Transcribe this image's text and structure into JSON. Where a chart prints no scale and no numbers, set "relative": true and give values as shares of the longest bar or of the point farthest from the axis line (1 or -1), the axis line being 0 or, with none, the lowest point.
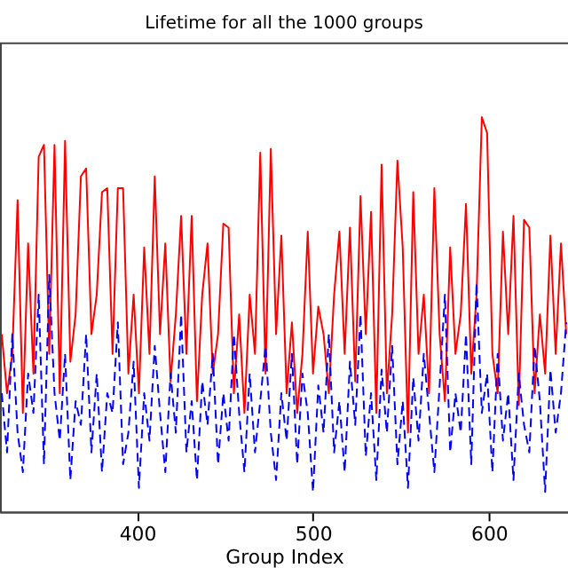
{
  "chart_data": {
    "type": "line",
    "title": "Lifetime for all the 1000 groups",
    "xlabel": "Group Index",
    "relative": true,
    "xlim": [
      322,
      645
    ],
    "xticks": [
      400,
      500,
      600
    ],
    "x": [
      323,
      326,
      329,
      332,
      335,
      338,
      341,
      344,
      347,
      350,
      353,
      356,
      359,
      362,
      365,
      368,
      371,
      374,
      377,
      380,
      383,
      386,
      389,
      392,
      395,
      398,
      401,
      404,
      407,
      410,
      413,
      416,
      419,
      422,
      425,
      428,
      431,
      434,
      437,
      440,
      443,
      446,
      449,
      452,
      455,
      458,
      461,
      464,
      467,
      470,
      473,
      476,
      479,
      482,
      485,
      488,
      491,
      494,
      497,
      500,
      503,
      506,
      509,
      512,
      515,
      518,
      521,
      524,
      527,
      530,
      533,
      536,
      539,
      542,
      545,
      548,
      551,
      554,
      557,
      560,
      563,
      566,
      569,
      572,
      575,
      578,
      581,
      584,
      587,
      590,
      593,
      596,
      599,
      602,
      605,
      608,
      611,
      614,
      617,
      620,
      623,
      626,
      629,
      632,
      635,
      638,
      641,
      644
    ],
    "series": [
      {
        "color": "#ff0000",
        "line_style": "solid",
        "values": [
          0.45,
          0.3,
          0.4,
          0.79,
          0.25,
          0.68,
          0.35,
          0.9,
          0.93,
          0.4,
          0.93,
          0.3,
          0.94,
          0.38,
          0.5,
          0.85,
          0.87,
          0.45,
          0.55,
          0.81,
          0.82,
          0.4,
          0.82,
          0.82,
          0.35,
          0.55,
          0.3,
          0.67,
          0.4,
          0.85,
          0.45,
          0.68,
          0.33,
          0.5,
          0.75,
          0.4,
          0.75,
          0.28,
          0.55,
          0.68,
          0.35,
          0.45,
          0.73,
          0.72,
          0.3,
          0.5,
          0.25,
          0.55,
          0.4,
          0.91,
          0.35,
          0.92,
          0.45,
          0.7,
          0.3,
          0.48,
          0.25,
          0.4,
          0.71,
          0.35,
          0.52,
          0.45,
          0.3,
          0.55,
          0.71,
          0.4,
          0.72,
          0.33,
          0.8,
          0.45,
          0.76,
          0.25,
          0.88,
          0.3,
          0.5,
          0.89,
          0.67,
          0.2,
          0.81,
          0.4,
          0.55,
          0.3,
          0.82,
          0.45,
          0.28,
          0.67,
          0.4,
          0.5,
          0.78,
          0.35,
          0.55,
          1.0,
          0.96,
          0.4,
          0.3,
          0.71,
          0.45,
          0.75,
          0.27,
          0.74,
          0.72,
          0.3,
          0.5,
          0.35,
          0.7,
          0.4,
          0.68,
          0.45
        ]
      },
      {
        "color": "#0000ff",
        "line_style": "dashed",
        "values": [
          0.3,
          0.15,
          0.45,
          0.2,
          0.1,
          0.35,
          0.25,
          0.55,
          0.12,
          0.6,
          0.3,
          0.18,
          0.4,
          0.08,
          0.28,
          0.22,
          0.45,
          0.15,
          0.35,
          0.1,
          0.3,
          0.25,
          0.48,
          0.12,
          0.2,
          0.38,
          0.06,
          0.3,
          0.18,
          0.42,
          0.25,
          0.1,
          0.35,
          0.2,
          0.5,
          0.15,
          0.28,
          0.08,
          0.33,
          0.22,
          0.4,
          0.12,
          0.3,
          0.18,
          0.45,
          0.25,
          0.1,
          0.35,
          0.15,
          0.28,
          0.42,
          0.2,
          0.08,
          0.3,
          0.18,
          0.4,
          0.12,
          0.35,
          0.25,
          0.05,
          0.32,
          0.2,
          0.45,
          0.15,
          0.28,
          0.1,
          0.38,
          0.22,
          0.5,
          0.14,
          0.3,
          0.08,
          0.36,
          0.2,
          0.42,
          0.12,
          0.28,
          0.06,
          0.34,
          0.18,
          0.4,
          0.25,
          0.1,
          0.32,
          0.55,
          0.15,
          0.3,
          0.2,
          0.45,
          0.12,
          0.58,
          0.25,
          0.35,
          0.1,
          0.4,
          0.18,
          0.3,
          0.08,
          0.35,
          0.22,
          0.15,
          0.42,
          0.28,
          0.05,
          0.36,
          0.2,
          0.3,
          0.48
        ]
      }
    ]
  }
}
